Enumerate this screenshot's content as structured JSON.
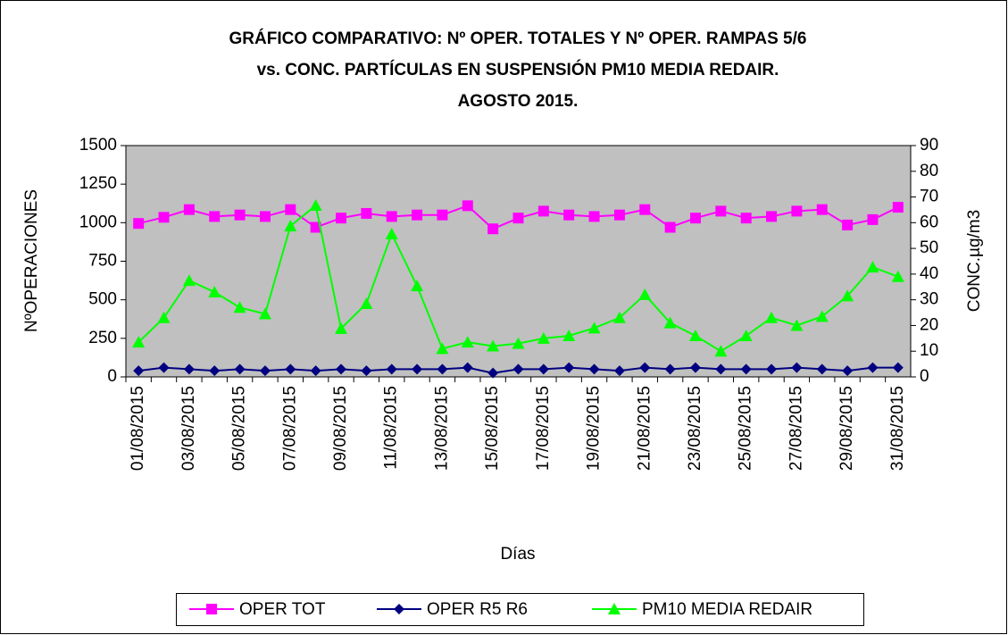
{
  "chart_data": {
    "type": "line",
    "title": [
      "GRÁFICO COMPARATIVO: Nº OPER. TOTALES Y Nº OPER. RAMPAS 5/6",
      "vs. CONC. PARTÍCULAS EN SUSPENSIÓN PM10 MEDIA REDAIR.",
      "AGOSTO 2015."
    ],
    "x_label": "Días",
    "y_label": "NºOPERACIONES",
    "y2_label": "CONC.µg/m3",
    "categories": [
      "01/08/2015",
      null,
      "03/08/2015",
      null,
      "05/08/2015",
      null,
      "07/08/2015",
      null,
      "09/08/2015",
      null,
      "11/08/2015",
      null,
      "13/08/2015",
      null,
      "15/08/2015",
      null,
      "17/08/2015",
      null,
      "19/08/2015",
      null,
      "21/08/2015",
      null,
      "23/08/2015",
      null,
      "25/08/2015",
      null,
      "27/08/2015",
      null,
      "29/08/2015",
      null,
      "31/08/2015"
    ],
    "ylim": [
      0,
      1500
    ],
    "yticks": [
      0,
      250,
      500,
      750,
      1000,
      1250,
      1500
    ],
    "y2lim": [
      0,
      90
    ],
    "y2ticks": [
      0,
      10,
      20,
      30,
      40,
      50,
      60,
      70,
      80,
      90
    ],
    "grid": false,
    "legend": "bottom",
    "plot_background": "#c0c0c0",
    "series": [
      {
        "name": "OPER TOT",
        "color": "#ff00ff",
        "marker": "square",
        "values": [
          995,
          1035,
          1085,
          1040,
          1050,
          1040,
          1085,
          970,
          1030,
          1060,
          1040,
          1050,
          1050,
          1110,
          960,
          1030,
          1075,
          1050,
          1040,
          1050,
          1085,
          970,
          1030,
          1075,
          1030,
          1040,
          1075,
          1085,
          985,
          1020,
          1100
        ]
      },
      {
        "name": "OPER R5 R6",
        "color": "#000080",
        "marker": "diamond",
        "values": [
          40,
          60,
          50,
          40,
          50,
          40,
          50,
          40,
          50,
          40,
          50,
          50,
          50,
          60,
          25,
          50,
          50,
          60,
          50,
          40,
          60,
          50,
          60,
          50,
          50,
          50,
          60,
          50,
          40,
          60,
          60
        ]
      },
      {
        "name": "PM10 MEDIA REDAIR",
        "color": "#00ff00",
        "marker": "triangle",
        "axis": "y2",
        "values": [
          13.5,
          23,
          37.5,
          33,
          27,
          24.5,
          58.7,
          66.7,
          18.8,
          28.5,
          55.6,
          35.4,
          11,
          13.5,
          12,
          13,
          15,
          16,
          19,
          23,
          32,
          21,
          16,
          10,
          16,
          23,
          20,
          23.5,
          31.5,
          42.7,
          39
        ]
      }
    ]
  }
}
